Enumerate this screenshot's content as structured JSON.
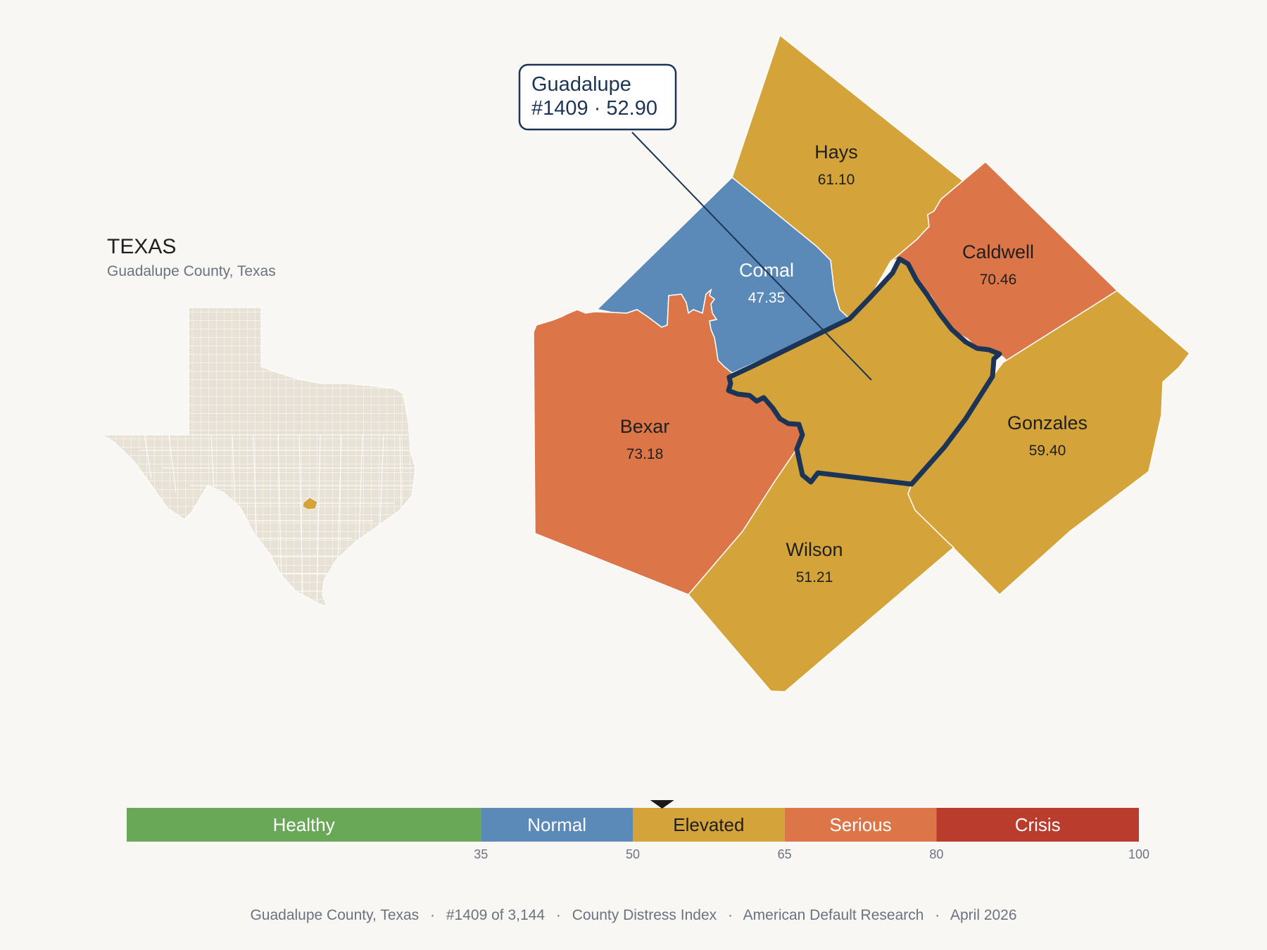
{
  "inset": {
    "state_title": "TEXAS",
    "state_subtitle": "Guadalupe County, Texas"
  },
  "callout": {
    "line1": "Guadalupe",
    "line2": "#1409 · 52.90"
  },
  "counties": [
    {
      "id": "guadalupe",
      "name": "",
      "score": "52.90",
      "color": "#d4a43b",
      "highlight": true
    },
    {
      "id": "hays",
      "name": "Hays",
      "score": "61.10",
      "color": "#d4a43b"
    },
    {
      "id": "caldwell",
      "name": "Caldwell",
      "score": "70.46",
      "color": "#dc7649"
    },
    {
      "id": "comal",
      "name": "Comal",
      "score": "47.35",
      "color": "#5b8ab9"
    },
    {
      "id": "bexar",
      "name": "Bexar",
      "score": "73.18",
      "color": "#dc7649"
    },
    {
      "id": "gonzales",
      "name": "Gonzales",
      "score": "59.40",
      "color": "#d4a43b"
    },
    {
      "id": "wilson",
      "name": "Wilson",
      "score": "51.21",
      "color": "#d4a43b"
    }
  ],
  "legend": {
    "min": 0,
    "max": 100,
    "marker_value": 52.9,
    "bands": [
      {
        "label": "Healthy",
        "from": 0,
        "to": 35,
        "color": "#68a857"
      },
      {
        "label": "Normal",
        "from": 35,
        "to": 50,
        "color": "#5b8ab9"
      },
      {
        "label": "Elevated",
        "from": 50,
        "to": 65,
        "color": "#d4a43b"
      },
      {
        "label": "Serious",
        "from": 65,
        "to": 80,
        "color": "#dc7649"
      },
      {
        "label": "Crisis",
        "from": 80,
        "to": 100,
        "color": "#b93c2c"
      }
    ],
    "ticks": [
      "35",
      "50",
      "65",
      "80",
      "100"
    ]
  },
  "footer": {
    "county": "Guadalupe County, Texas",
    "rank": "#1409 of 3,144",
    "index": "County Distress Index",
    "source": "American Default Research",
    "date": "April 2026",
    "separator": "·"
  },
  "colors": {
    "background": "#f9f7f3",
    "highlight_border": "#1c3557",
    "texas_fill": "#e8e2d6"
  }
}
